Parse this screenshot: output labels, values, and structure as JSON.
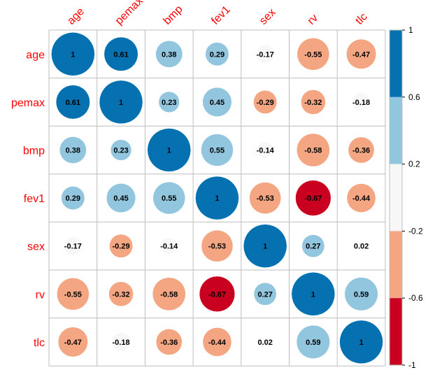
{
  "chart_data": {
    "type": "heatmap",
    "variables": [
      "age",
      "pemax",
      "bmp",
      "fev1",
      "sex",
      "rv",
      "tlc"
    ],
    "matrix": [
      [
        1,
        0.61,
        0.38,
        0.29,
        -0.17,
        -0.55,
        -0.47
      ],
      [
        0.61,
        1,
        0.23,
        0.45,
        -0.29,
        -0.32,
        -0.18
      ],
      [
        0.38,
        0.23,
        1,
        0.55,
        -0.14,
        -0.58,
        -0.36
      ],
      [
        0.29,
        0.45,
        0.55,
        1,
        -0.53,
        -0.67,
        -0.44
      ],
      [
        -0.17,
        -0.29,
        -0.14,
        -0.53,
        1,
        0.27,
        0.02
      ],
      [
        -0.55,
        -0.32,
        -0.58,
        -0.67,
        0.27,
        1,
        0.59
      ],
      [
        -0.47,
        -0.18,
        -0.36,
        -0.44,
        0.02,
        0.59,
        1
      ]
    ],
    "cell_labels": [
      [
        "1",
        "0.61",
        "0.38",
        "0.29",
        "-0.17",
        "-0.55",
        "-0.47"
      ],
      [
        "0.61",
        "1",
        "0.23",
        "0.45",
        "-0.29",
        "-0.32",
        "-0.18"
      ],
      [
        "0.38",
        "0.23",
        "1",
        "0.55",
        "-0.14",
        "-0.58",
        "-0.36"
      ],
      [
        "0.29",
        "0.45",
        "0.55",
        "1",
        "-0.53",
        "-0.67",
        "-0.44"
      ],
      [
        "-0.17",
        "-0.29",
        "-0.14",
        "-0.53",
        "1",
        "0.27",
        "0.02"
      ],
      [
        "-0.55",
        "-0.32",
        "-0.58",
        "-0.67",
        "0.27",
        "1",
        "0.59"
      ],
      [
        "-0.47",
        "-0.18",
        "-0.36",
        "-0.44",
        "0.02",
        "0.59",
        "1"
      ]
    ],
    "colorbar": {
      "ticks": [
        "1",
        "0.6",
        "0.2",
        "-0.2",
        "-0.6",
        "-1"
      ],
      "bands": [
        {
          "from": 0.6,
          "to": 1.0,
          "color": "#0571b0"
        },
        {
          "from": 0.2,
          "to": 0.6,
          "color": "#92c5de"
        },
        {
          "from": -0.2,
          "to": 0.2,
          "color": "#f7f7f7"
        },
        {
          "from": -0.6,
          "to": -0.2,
          "color": "#f4a582"
        },
        {
          "from": -1.0,
          "to": -0.6,
          "color": "#ca0020"
        }
      ],
      "range": [
        -1,
        1
      ]
    },
    "title": "",
    "xlabel": "",
    "ylabel": ""
  },
  "colors": {
    "label": "#ff0000",
    "grid": "#bebebe",
    "text": "#000000"
  }
}
